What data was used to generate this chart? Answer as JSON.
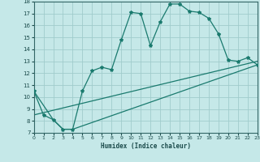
{
  "xlabel": "Humidex (Indice chaleur)",
  "bg_color": "#c5e8e8",
  "grid_color": "#a0cccc",
  "line_color": "#1a7a6e",
  "xlim": [
    0,
    23
  ],
  "ylim": [
    7,
    18
  ],
  "yticks": [
    7,
    8,
    9,
    10,
    11,
    12,
    13,
    14,
    15,
    16,
    17,
    18
  ],
  "xticks": [
    0,
    1,
    2,
    3,
    4,
    5,
    6,
    7,
    8,
    9,
    10,
    11,
    12,
    13,
    14,
    15,
    16,
    17,
    18,
    19,
    20,
    21,
    22,
    23
  ],
  "line1_x": [
    0,
    1,
    2,
    3,
    4,
    5,
    6,
    7,
    8,
    9,
    10,
    11,
    12,
    13,
    14,
    15,
    16,
    17,
    18,
    19,
    20,
    21,
    22,
    23
  ],
  "line1_y": [
    10.5,
    8.5,
    8.1,
    7.3,
    7.3,
    10.5,
    12.2,
    12.5,
    12.3,
    14.8,
    17.1,
    17.0,
    14.3,
    16.3,
    17.8,
    17.8,
    17.2,
    17.1,
    16.6,
    15.3,
    13.1,
    13.0,
    13.3,
    12.7
  ],
  "line2_x": [
    0,
    2,
    3,
    4,
    23
  ],
  "line2_y": [
    10.5,
    8.1,
    7.3,
    7.3,
    12.7
  ],
  "line3_x": [
    0,
    23
  ],
  "line3_y": [
    8.5,
    13.0
  ],
  "marker": "*",
  "markersize": 3,
  "linewidth": 0.9
}
